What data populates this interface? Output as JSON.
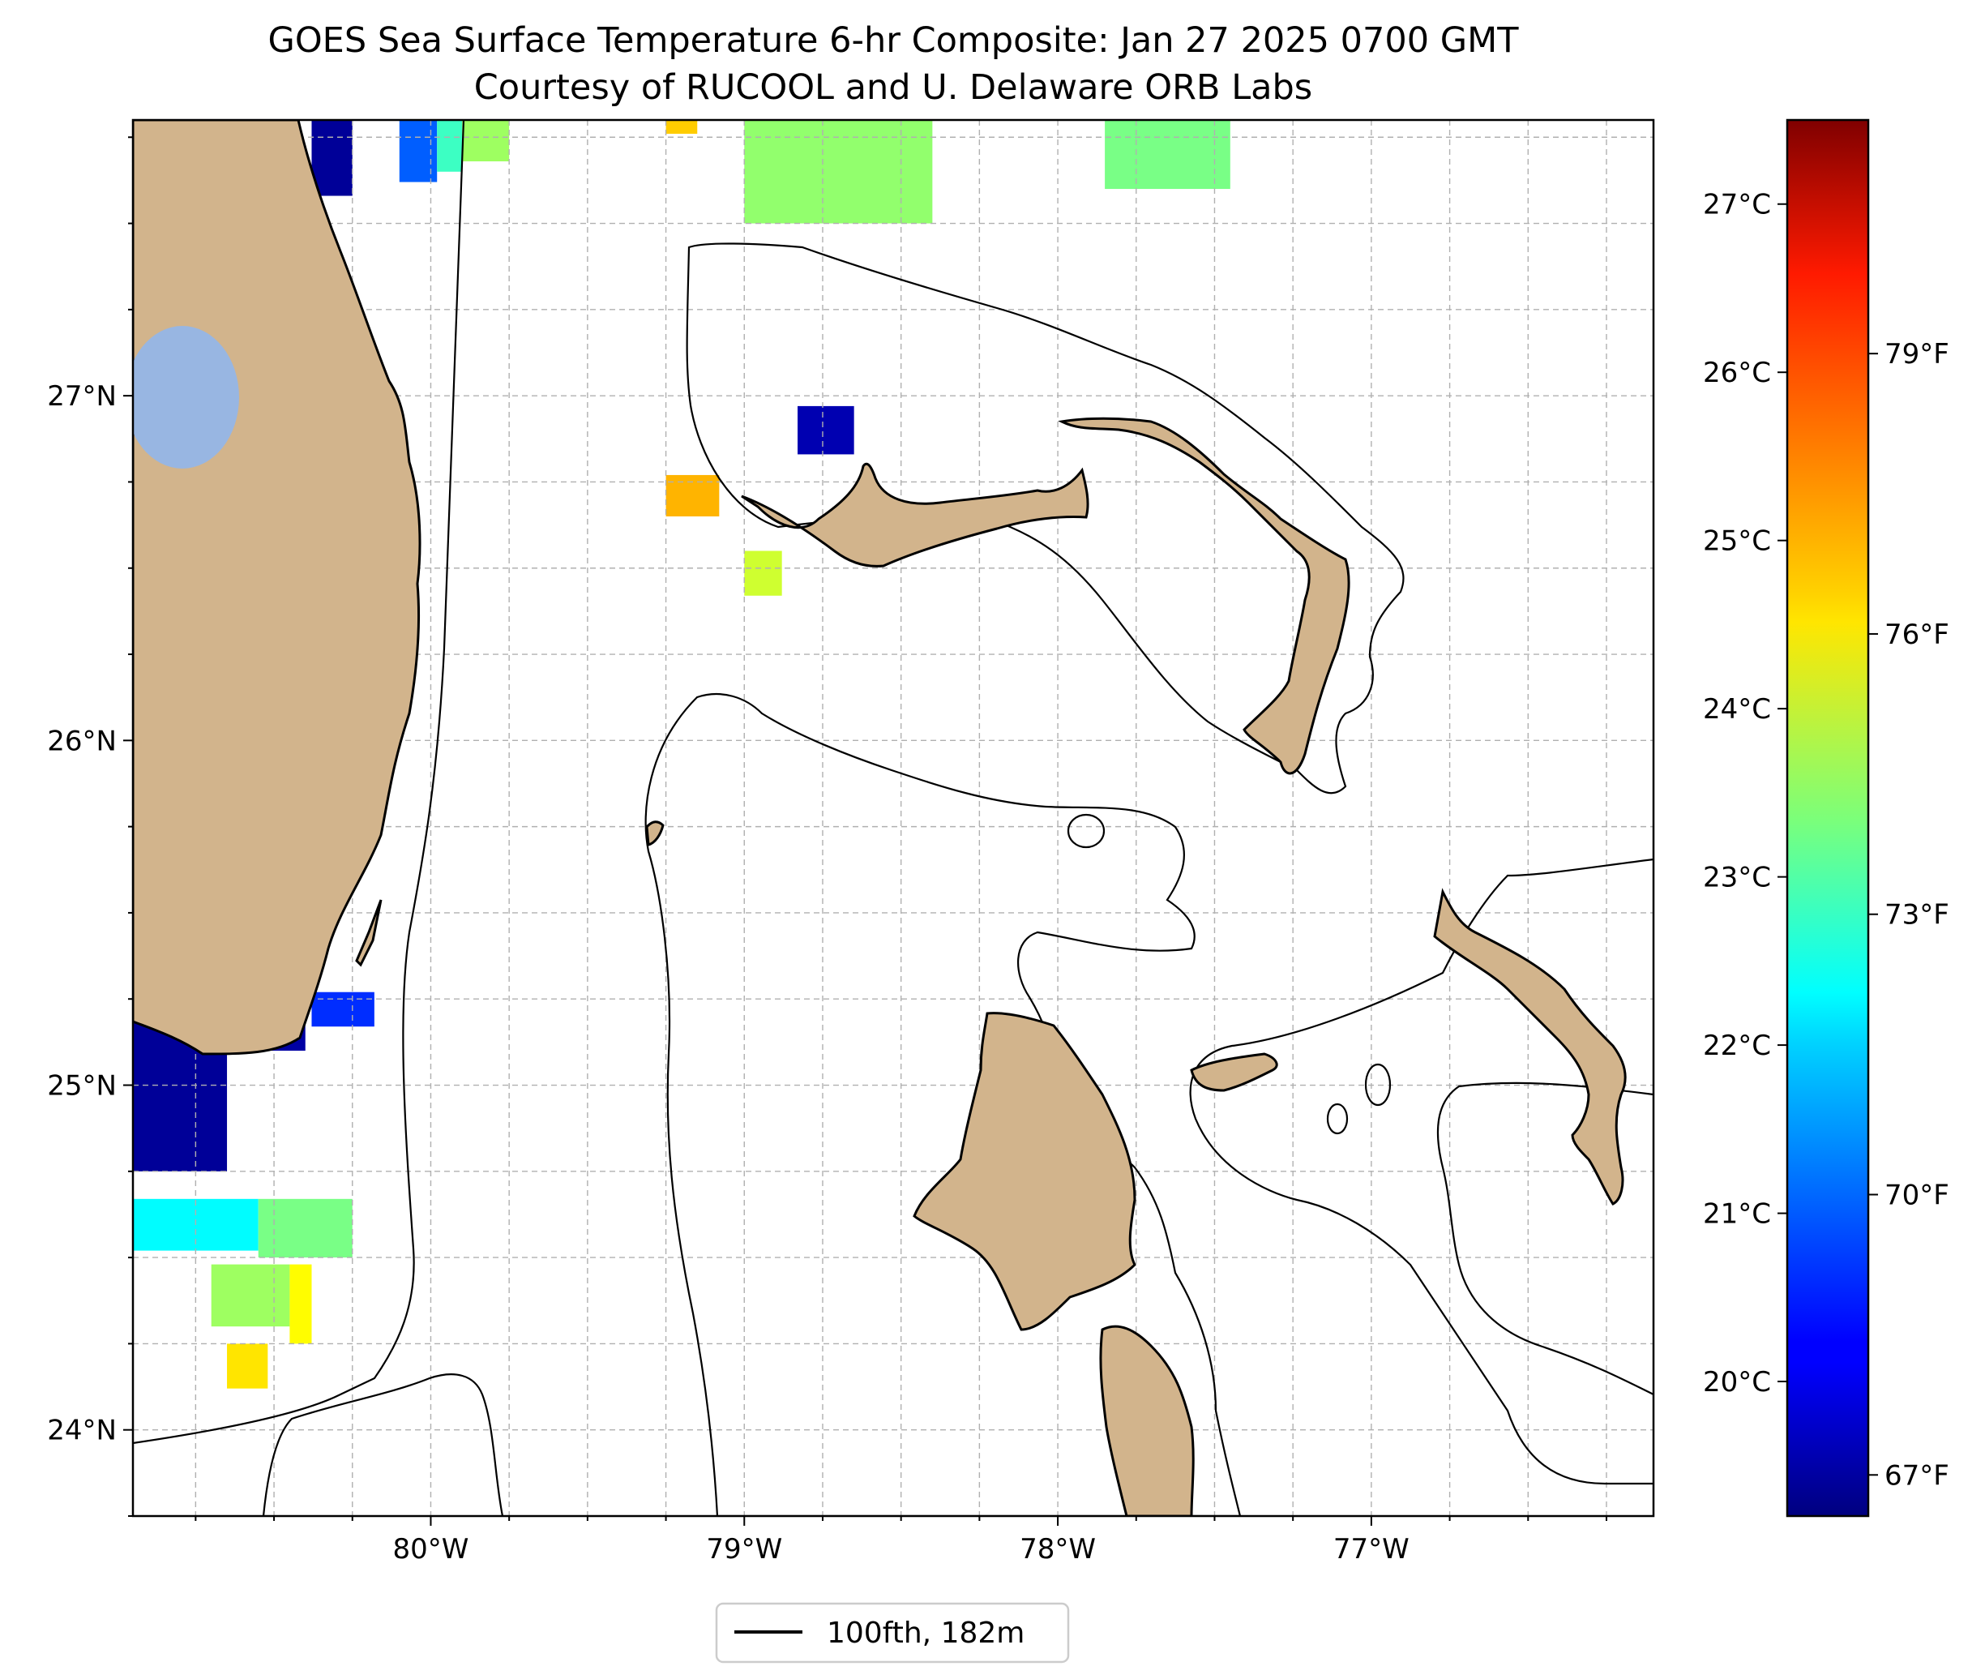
{
  "title": {
    "line1": "GOES Sea Surface Temperature 6-hr Composite: Jan 27 2025 0700 GMT",
    "line2": "Courtesy of RUCOOL and U. Delaware ORB Labs"
  },
  "map": {
    "lon_range": [
      -80.95,
      -76.1
    ],
    "lat_range": [
      23.75,
      27.8
    ],
    "lon_ticks": [
      {
        "value": -80,
        "label": "80°W"
      },
      {
        "value": -79,
        "label": "79°W"
      },
      {
        "value": -78,
        "label": "78°W"
      },
      {
        "value": -77,
        "label": "77°W"
      }
    ],
    "lat_ticks": [
      {
        "value": 24,
        "label": "24°N"
      },
      {
        "value": 25,
        "label": "25°N"
      },
      {
        "value": 26,
        "label": "26°N"
      },
      {
        "value": 27,
        "label": "27°N"
      }
    ],
    "land_color": "#d2b48c",
    "lake_color": "#98b6e2",
    "grid": true
  },
  "colorbar": {
    "colormap": "jet",
    "celsius_range": [
      19.2,
      27.5
    ],
    "celsius_ticks": [
      {
        "value": 20,
        "label": "20°C"
      },
      {
        "value": 21,
        "label": "21°C"
      },
      {
        "value": 22,
        "label": "22°C"
      },
      {
        "value": 23,
        "label": "23°C"
      },
      {
        "value": 24,
        "label": "24°C"
      },
      {
        "value": 25,
        "label": "25°C"
      },
      {
        "value": 26,
        "label": "26°C"
      },
      {
        "value": 27,
        "label": "27°C"
      }
    ],
    "fahrenheit_ticks": [
      {
        "value": 67,
        "label": "67°F"
      },
      {
        "value": 70,
        "label": "70°F"
      },
      {
        "value": 73,
        "label": "73°F"
      },
      {
        "value": 76,
        "label": "76°F"
      },
      {
        "value": 79,
        "label": "79°F"
      }
    ]
  },
  "legend": {
    "placement": "below-center",
    "entries": [
      {
        "label": "100fth, 182m",
        "color": "#000000"
      }
    ]
  },
  "sst_patches": [
    {
      "lon": [
        -80.95,
        -80.65
      ],
      "lat": [
        24.75,
        25.2
      ],
      "temp_c": 19.4
    },
    {
      "lon": [
        -80.65,
        -80.4
      ],
      "lat": [
        25.1,
        25.35
      ],
      "temp_c": 19.5
    },
    {
      "lon": [
        -80.38,
        -80.18
      ],
      "lat": [
        25.17,
        25.27
      ],
      "temp_c": 20.6
    },
    {
      "lon": [
        -80.38,
        -80.25
      ],
      "lat": [
        27.58,
        27.8
      ],
      "temp_c": 19.4
    },
    {
      "lon": [
        -80.1,
        -79.98
      ],
      "lat": [
        27.62,
        27.8
      ],
      "temp_c": 21.0
    },
    {
      "lon": [
        -79.98,
        -79.9
      ],
      "lat": [
        27.65,
        27.8
      ],
      "temp_c": 22.8
    },
    {
      "lon": [
        -79.9,
        -79.75
      ],
      "lat": [
        27.68,
        27.8
      ],
      "temp_c": 23.6
    },
    {
      "lon": [
        -79.25,
        -79.15
      ],
      "lat": [
        27.76,
        27.8
      ],
      "temp_c": 24.8
    },
    {
      "lon": [
        -79.0,
        -78.4
      ],
      "lat": [
        27.5,
        27.8
      ],
      "temp_c": 23.5
    },
    {
      "lon": [
        -77.85,
        -77.45
      ],
      "lat": [
        27.6,
        27.8
      ],
      "temp_c": 23.3
    },
    {
      "lon": [
        -78.83,
        -78.65
      ],
      "lat": [
        26.83,
        26.97
      ],
      "temp_c": 19.6
    },
    {
      "lon": [
        -79.25,
        -79.08
      ],
      "lat": [
        26.65,
        26.77
      ],
      "temp_c": 25.0
    },
    {
      "lon": [
        -79.0,
        -78.88
      ],
      "lat": [
        26.42,
        26.55
      ],
      "temp_c": 24.0
    },
    {
      "lon": [
        -80.95,
        -80.55
      ],
      "lat": [
        24.52,
        24.67
      ],
      "temp_c": 22.3
    },
    {
      "lon": [
        -80.55,
        -80.25
      ],
      "lat": [
        24.5,
        24.67
      ],
      "temp_c": 23.3
    },
    {
      "lon": [
        -80.7,
        -80.45
      ],
      "lat": [
        24.3,
        24.48
      ],
      "temp_c": 23.6
    },
    {
      "lon": [
        -80.45,
        -80.38
      ],
      "lat": [
        24.25,
        24.48
      ],
      "temp_c": 24.4
    },
    {
      "lon": [
        -80.65,
        -80.52
      ],
      "lat": [
        24.12,
        24.25
      ],
      "temp_c": 24.6
    }
  ]
}
